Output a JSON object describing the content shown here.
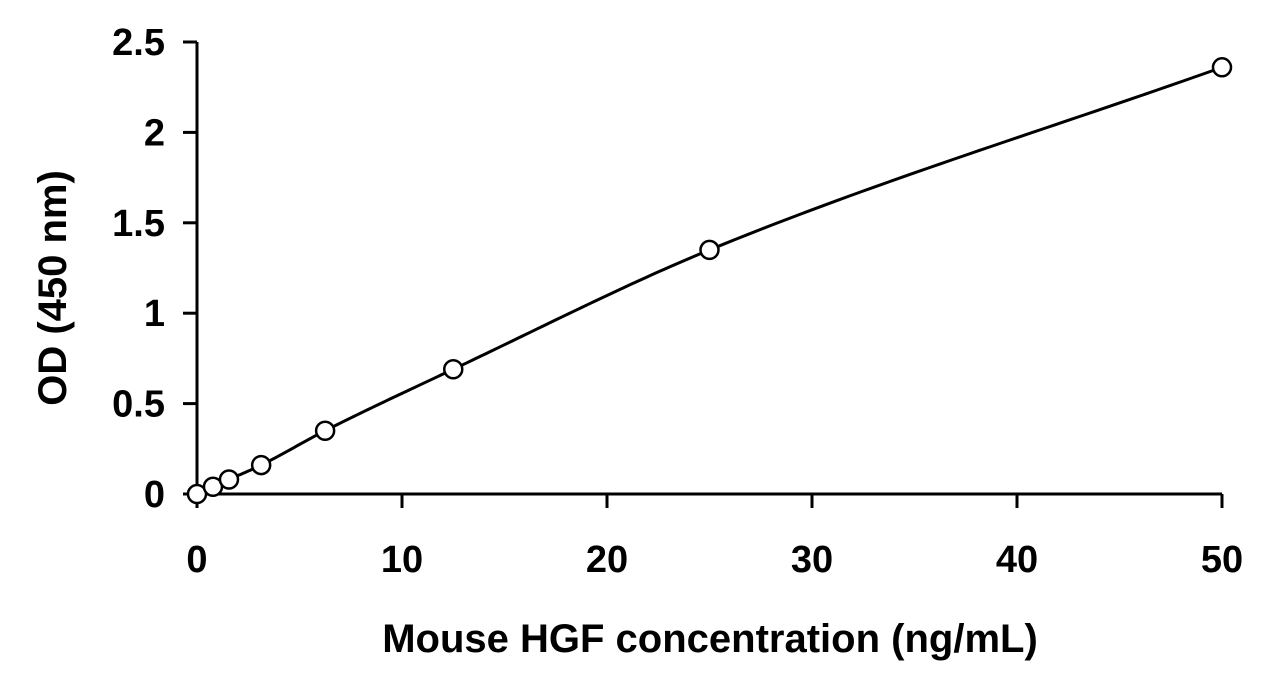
{
  "chart_data": {
    "type": "scatter",
    "title": "",
    "xlabel": "Mouse HGF concentration (ng/mL)",
    "ylabel": "OD (450 nm)",
    "xlim": [
      0,
      50
    ],
    "ylim": [
      0,
      2.5
    ],
    "x_ticks": [
      0,
      10,
      20,
      30,
      40,
      50
    ],
    "x_tick_labels": [
      "0",
      "10",
      "20",
      "30",
      "40",
      "50"
    ],
    "y_ticks": [
      0,
      0.5,
      1,
      1.5,
      2,
      2.5
    ],
    "y_tick_labels": [
      "0",
      "0.5",
      "1",
      "1.5",
      "2",
      "2.5"
    ],
    "grid": false,
    "legend": "none",
    "series": [
      {
        "x": [
          0,
          0.78,
          1.56,
          3.13,
          6.25,
          12.5,
          25,
          50
        ],
        "y": [
          0.0,
          0.04,
          0.08,
          0.16,
          0.35,
          0.69,
          1.35,
          2.36
        ],
        "marker": "open-circle",
        "fit_line": "smooth"
      }
    ],
    "colors": {
      "line": "#000000",
      "marker_edge": "#000000",
      "marker_fill": "#ffffff"
    }
  }
}
